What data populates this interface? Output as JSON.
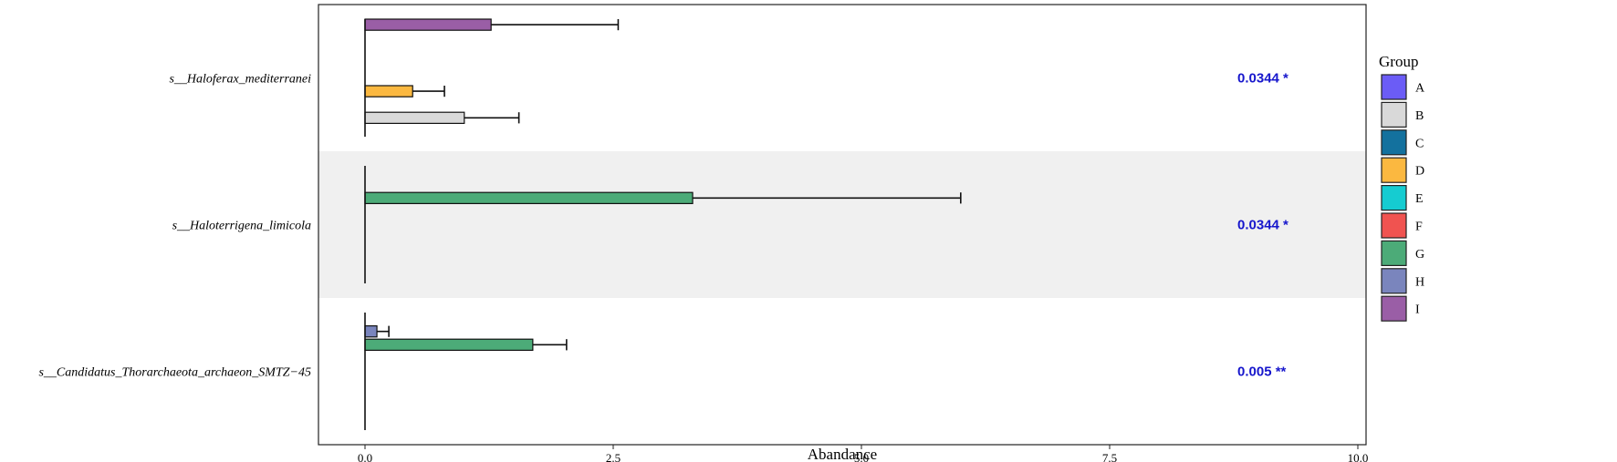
{
  "chart_data": {
    "type": "bar",
    "orientation": "horizontal",
    "xlabel": "Abandance",
    "xlim": [
      -0.45,
      10.05
    ],
    "xticks": [
      {
        "value": 0,
        "label": "0.0"
      },
      {
        "value": 2.5,
        "label": "2.5"
      },
      {
        "value": 5,
        "label": "5.0"
      },
      {
        "value": 7.5,
        "label": "7.5"
      },
      {
        "value": 10,
        "label": "10.0"
      }
    ],
    "legend": {
      "title": "Group",
      "placement": "right",
      "items": [
        {
          "name": "A",
          "color": "#6b5cf6"
        },
        {
          "name": "B",
          "color": "#d9d9d9"
        },
        {
          "name": "C",
          "color": "#13719e"
        },
        {
          "name": "D",
          "color": "#fbb840"
        },
        {
          "name": "E",
          "color": "#15ccd1"
        },
        {
          "name": "F",
          "color": "#f05350"
        },
        {
          "name": "G",
          "color": "#4cab78"
        },
        {
          "name": "H",
          "color": "#7a85bd"
        },
        {
          "name": "I",
          "color": "#9a5ea6"
        }
      ]
    },
    "categories": [
      "s__Haloferax_mediterranei",
      "s__Haloterrigena_limicola",
      "s__Candidatus_Thorarchaeota_archaeon_SMTZ−45"
    ],
    "group_order_top_to_bottom": [
      "I",
      "H",
      "G",
      "F",
      "E",
      "D",
      "C",
      "B",
      "A"
    ],
    "series": [
      {
        "name": "A",
        "values": [
          0,
          0,
          0
        ],
        "errors": [
          0,
          0,
          0
        ]
      },
      {
        "name": "B",
        "values": [
          1.0,
          0,
          0
        ],
        "errors": [
          0.55,
          0,
          0
        ]
      },
      {
        "name": "C",
        "values": [
          0,
          0,
          0
        ],
        "errors": [
          0,
          0,
          0
        ]
      },
      {
        "name": "D",
        "values": [
          0.48,
          0,
          0
        ],
        "errors": [
          0.32,
          0,
          0
        ]
      },
      {
        "name": "E",
        "values": [
          0,
          0,
          0
        ],
        "errors": [
          0,
          0,
          0
        ]
      },
      {
        "name": "F",
        "values": [
          0,
          0,
          0
        ],
        "errors": [
          0,
          0,
          0
        ]
      },
      {
        "name": "G",
        "values": [
          0,
          3.3,
          1.69
        ],
        "errors": [
          0,
          2.7,
          0.34
        ]
      },
      {
        "name": "H",
        "values": [
          0,
          0,
          0.12
        ],
        "errors": [
          0,
          0,
          0.12
        ]
      },
      {
        "name": "I",
        "values": [
          1.27,
          0,
          0
        ],
        "errors": [
          1.28,
          0,
          0
        ]
      }
    ],
    "pvalues": [
      "0.0344 *",
      "0.0344 *",
      "0.005 **"
    ],
    "shaded_bands": [
      false,
      true,
      false
    ],
    "grid": false
  }
}
